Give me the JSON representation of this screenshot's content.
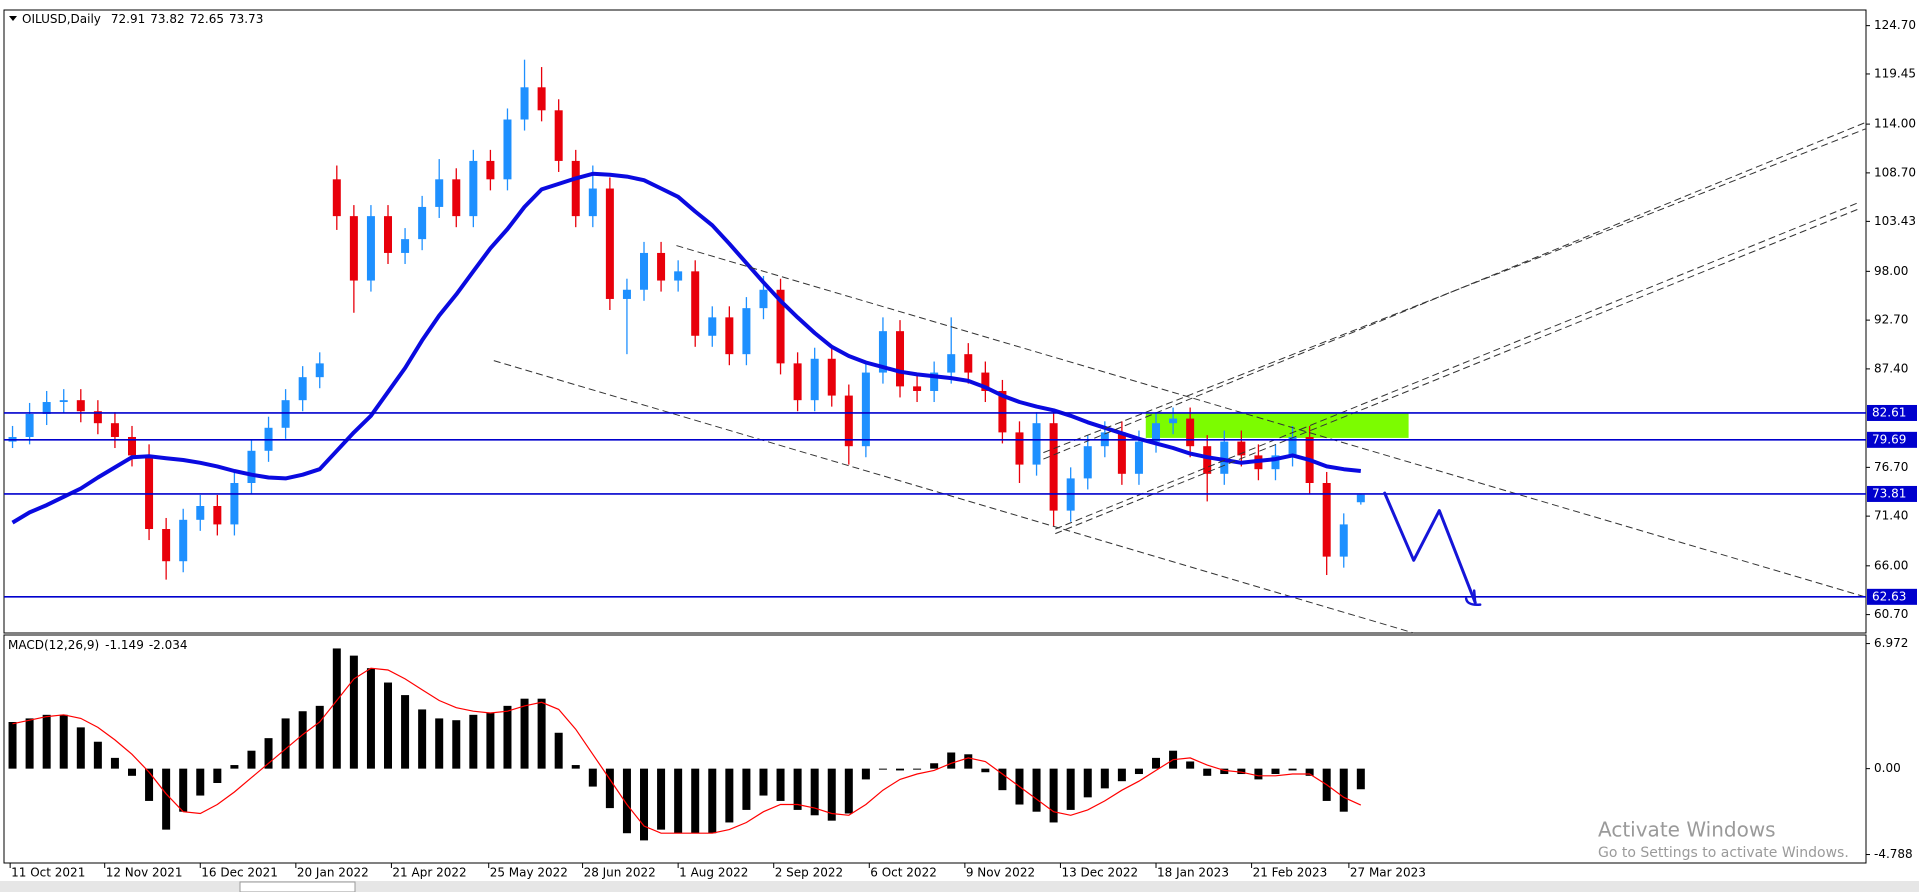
{
  "chart_data": [
    {
      "type": "candlestick",
      "title": "OILUSD,Daily",
      "xlim": [
        -0.5,
        108.6
      ],
      "xticks": [
        {
          "value": -0.14,
          "label": "11 Oct 2021"
        },
        {
          "value": 5.4,
          "label": "12 Nov 2021"
        },
        {
          "value": 11.0,
          "label": "16 Dec 2021"
        },
        {
          "value": 16.6,
          "label": "20 Jan 2022"
        },
        {
          "value": 22.2,
          "label": "21 Apr 2022"
        },
        {
          "value": 27.9,
          "label": "25 May 2022"
        },
        {
          "value": 33.4,
          "label": "28 Jun 2022"
        },
        {
          "value": 39.0,
          "label": "1 Aug 2022"
        },
        {
          "value": 44.6,
          "label": "2 Sep 2022"
        },
        {
          "value": 50.2,
          "label": "6 Oct 2022"
        },
        {
          "value": 55.8,
          "label": "9 Nov 2022"
        },
        {
          "value": 61.4,
          "label": "13 Dec 2022"
        },
        {
          "value": 67.0,
          "label": "18 Jan 2023"
        },
        {
          "value": 72.6,
          "label": "21 Feb 2023"
        },
        {
          "value": 78.3,
          "label": "27 Mar 2023"
        }
      ],
      "ylim": [
        58.7,
        126.4
      ],
      "yticks": [
        {
          "value": 124.7,
          "label": "124.70"
        },
        119.45,
        {
          "value": 114,
          "label": "114.00"
        },
        {
          "value": 108.7,
          "label": "108.70"
        },
        103.43,
        {
          "value": 98,
          "label": "98.00"
        },
        {
          "value": 92.7,
          "label": "92.70"
        },
        {
          "value": 87.4,
          "label": "87.40"
        },
        {
          "value": 76.7,
          "label": "76.70"
        },
        {
          "value": 71.4,
          "label": "71.40"
        },
        {
          "value": 66,
          "label": "66.00"
        },
        {
          "value": 60.7,
          "label": "60.70"
        }
      ],
      "up_color": "#1e90ff",
      "down_color": "#e8000b",
      "candles": [
        [
          79.5,
          81.2,
          78.8,
          80.0
        ],
        [
          80.0,
          83.7,
          79.2,
          82.5
        ],
        [
          82.5,
          85.0,
          81.3,
          83.8
        ],
        [
          83.8,
          85.2,
          82.6,
          84.0
        ],
        [
          84.0,
          85.2,
          81.6,
          82.8
        ],
        [
          82.8,
          84.0,
          80.3,
          81.5
        ],
        [
          81.5,
          82.7,
          78.8,
          80.0
        ],
        [
          80.0,
          81.2,
          76.8,
          78.0
        ],
        [
          78.0,
          79.2,
          68.8,
          70.0
        ],
        [
          70.0,
          71.2,
          64.5,
          66.5
        ],
        [
          66.5,
          72.2,
          65.3,
          71.0
        ],
        [
          71.0,
          73.7,
          69.8,
          72.5
        ],
        [
          72.5,
          73.7,
          69.3,
          70.5
        ],
        [
          70.5,
          76.2,
          69.3,
          75.0
        ],
        [
          75.0,
          79.7,
          73.8,
          78.5
        ],
        [
          78.5,
          82.2,
          77.3,
          81.0
        ],
        [
          81.0,
          85.2,
          79.8,
          84.0
        ],
        [
          84.0,
          87.7,
          82.8,
          86.5
        ],
        [
          86.5,
          89.2,
          85.3,
          88.0
        ],
        [
          108.0,
          109.5,
          102.5,
          104.0
        ],
        [
          104.0,
          105.2,
          93.5,
          97.0
        ],
        [
          97.0,
          105.2,
          95.8,
          104.0
        ],
        [
          104.0,
          105.2,
          98.8,
          100.0
        ],
        [
          100.0,
          102.7,
          98.8,
          101.5
        ],
        [
          101.5,
          106.2,
          100.3,
          105.0
        ],
        [
          105.0,
          110.2,
          103.8,
          108.0
        ],
        [
          108.0,
          109.2,
          102.8,
          104.0
        ],
        [
          104.0,
          111.2,
          102.8,
          110.0
        ],
        [
          110.0,
          111.2,
          106.8,
          108.0
        ],
        [
          108.0,
          115.7,
          106.8,
          114.5
        ],
        [
          114.5,
          121.0,
          113.3,
          118.0
        ],
        [
          118.0,
          120.2,
          114.3,
          115.5
        ],
        [
          115.5,
          116.7,
          108.8,
          110.0
        ],
        [
          110.0,
          111.2,
          102.8,
          104.0
        ],
        [
          104.0,
          109.5,
          102.8,
          107.0
        ],
        [
          107.0,
          108.2,
          93.8,
          95.0
        ],
        [
          95.0,
          97.2,
          89.0,
          96.0
        ],
        [
          96.0,
          101.2,
          94.8,
          100.0
        ],
        [
          100.0,
          101.2,
          95.8,
          97.0
        ],
        [
          97.0,
          99.2,
          95.8,
          98.0
        ],
        [
          98.0,
          99.2,
          89.8,
          91.0
        ],
        [
          91.0,
          94.2,
          89.8,
          93.0
        ],
        [
          93.0,
          94.2,
          87.8,
          89.0
        ],
        [
          89.0,
          95.2,
          87.8,
          94.0
        ],
        [
          94.0,
          97.5,
          92.8,
          96.0
        ],
        [
          96.0,
          97.2,
          86.8,
          88.0
        ],
        [
          88.0,
          89.2,
          82.8,
          84.0
        ],
        [
          84.0,
          89.7,
          82.8,
          88.5
        ],
        [
          88.5,
          89.7,
          83.3,
          84.5
        ],
        [
          84.5,
          85.7,
          77.0,
          79.0
        ],
        [
          79.0,
          88.2,
          77.8,
          87.0
        ],
        [
          87.0,
          93.0,
          85.8,
          91.5
        ],
        [
          91.5,
          92.7,
          84.3,
          85.5
        ],
        [
          85.5,
          86.7,
          83.8,
          85.0
        ],
        [
          85.0,
          88.2,
          83.8,
          87.0
        ],
        [
          87.0,
          93.0,
          85.8,
          89.0
        ],
        [
          89.0,
          90.2,
          85.8,
          87.0
        ],
        [
          87.0,
          88.2,
          83.8,
          85.0
        ],
        [
          85.0,
          86.2,
          79.3,
          80.5
        ],
        [
          80.5,
          81.7,
          75.0,
          77.0
        ],
        [
          77.0,
          82.7,
          75.8,
          81.5
        ],
        [
          81.5,
          82.7,
          70.3,
          72.0
        ],
        [
          72.0,
          76.7,
          70.8,
          75.5
        ],
        [
          75.5,
          80.2,
          74.3,
          79.0
        ],
        [
          79.0,
          81.7,
          77.8,
          80.5
        ],
        [
          80.5,
          81.7,
          74.8,
          76.0
        ],
        [
          76.0,
          80.7,
          74.8,
          79.5
        ],
        [
          79.5,
          82.7,
          78.3,
          81.5
        ],
        [
          81.5,
          83.2,
          80.3,
          82.0
        ],
        [
          82.0,
          83.2,
          77.8,
          79.0
        ],
        [
          79.0,
          80.2,
          73.0,
          76.0
        ],
        [
          76.0,
          80.7,
          74.8,
          79.5
        ],
        [
          79.5,
          80.7,
          76.8,
          78.0
        ],
        [
          78.0,
          79.2,
          75.3,
          76.5
        ],
        [
          76.5,
          79.2,
          75.3,
          78.0
        ],
        [
          78.0,
          81.2,
          76.8,
          80.0
        ],
        [
          80.0,
          81.2,
          73.8,
          75.0
        ],
        [
          75.0,
          76.2,
          65.0,
          67.0
        ],
        [
          67.0,
          71.7,
          65.8,
          70.5
        ],
        [
          72.91,
          73.82,
          72.65,
          73.73
        ]
      ],
      "ma": {
        "color": "#0a0ae0",
        "values": [
          70.7,
          71.8,
          72.6,
          73.5,
          74.4,
          75.6,
          76.7,
          77.8,
          77.9,
          77.7,
          77.5,
          77.2,
          76.8,
          76.3,
          75.9,
          75.6,
          75.5,
          75.9,
          76.5,
          78.5,
          80.5,
          82.3,
          84.9,
          87.5,
          90.5,
          93.2,
          95.5,
          98.0,
          100.5,
          102.6,
          105.0,
          106.9,
          107.5,
          108.1,
          108.6,
          108.5,
          108.3,
          107.9,
          107.0,
          106.1,
          104.5,
          103.0,
          101.0,
          98.9,
          96.8,
          94.8,
          93.0,
          91.3,
          89.8,
          88.8,
          88.1,
          87.6,
          87.1,
          86.8,
          86.6,
          86.4,
          86.1,
          85.4,
          84.5,
          83.8,
          83.3,
          82.9,
          82.3,
          81.6,
          81.0,
          80.4,
          79.8,
          79.3,
          78.8,
          78.2,
          77.8,
          77.5,
          77.2,
          77.4,
          77.6,
          78.0,
          77.5,
          76.8,
          76.5,
          76.3
        ]
      },
      "levels": {
        "color": "#0000cd",
        "values": [
          82.61,
          79.69,
          73.81,
          62.63
        ]
      },
      "zone": {
        "color": "#7cfc00",
        "x": [
          66.4,
          81.8
        ],
        "y": [
          79.9,
          82.6
        ]
      },
      "trendlines": [
        {
          "x": [
            38.9,
            108.6
          ],
          "y": [
            100.8,
            62.6
          ]
        },
        {
          "x": [
            28.2,
            82.1
          ],
          "y": [
            88.3,
            58.7
          ]
        },
        {
          "x": [
            60.4,
            108.6
          ],
          "y": [
            77.6,
            114.2
          ]
        },
        {
          "x": [
            60.4,
            108.6
          ],
          "y": [
            78.3,
            113.5
          ]
        },
        {
          "x": [
            61.1,
            108.2
          ],
          "y": [
            70.0,
            105.5
          ]
        },
        {
          "x": [
            61.1,
            108.2
          ],
          "y": [
            69.5,
            104.8
          ]
        }
      ],
      "projection": {
        "color": "#1515d8",
        "x": [
          80.4,
          82.1,
          83.6,
          85.7
        ],
        "y": [
          73.9,
          66.6,
          72.0,
          62.0
        ]
      }
    },
    {
      "type": "macd",
      "title": "MACD(12,26,9)",
      "color": "#000000",
      "ylim": [
        -5.26,
        7.45
      ],
      "yticks": [
        6.972,
        {
          "value": 0,
          "label": "0.00"
        },
        -4.788
      ],
      "values": [
        2.6,
        2.8,
        3.0,
        3.0,
        2.3,
        1.5,
        0.6,
        -0.4,
        -1.8,
        -3.4,
        -2.4,
        -1.5,
        -0.8,
        0.2,
        1.0,
        1.7,
        2.8,
        3.2,
        3.5,
        6.7,
        6.3,
        5.6,
        4.8,
        4.1,
        3.3,
        2.8,
        2.7,
        3.0,
        3.1,
        3.5,
        3.9,
        3.9,
        2.0,
        0.2,
        -1.0,
        -2.2,
        -3.6,
        -4.0,
        -3.4,
        -3.6,
        -3.6,
        -3.6,
        -3.0,
        -2.3,
        -1.5,
        -1.8,
        -2.3,
        -2.6,
        -2.9,
        -2.5,
        -0.6,
        0.0,
        -0.1,
        0.0,
        0.3,
        0.9,
        0.8,
        -0.2,
        -1.2,
        -2.0,
        -2.4,
        -3.0,
        -2.3,
        -1.6,
        -1.1,
        -0.7,
        -0.3,
        0.6,
        1.0,
        0.4,
        -0.4,
        -0.3,
        -0.3,
        -0.6,
        -0.3,
        -0.1,
        -0.4,
        -1.8,
        -2.4,
        -1.149
      ],
      "signal": {
        "color": "#ff0000",
        "values": [
          2.5,
          2.7,
          2.9,
          3.0,
          2.8,
          2.3,
          1.6,
          0.8,
          -0.2,
          -1.4,
          -2.4,
          -2.5,
          -2.0,
          -1.3,
          -0.5,
          0.3,
          1.1,
          1.9,
          2.6,
          3.8,
          5.0,
          5.6,
          5.5,
          5.0,
          4.4,
          3.8,
          3.4,
          3.2,
          3.1,
          3.2,
          3.5,
          3.7,
          3.3,
          2.2,
          0.8,
          -0.6,
          -2.0,
          -3.2,
          -3.6,
          -3.6,
          -3.6,
          -3.6,
          -3.4,
          -3.0,
          -2.4,
          -2.0,
          -2.0,
          -2.2,
          -2.5,
          -2.6,
          -2.0,
          -1.2,
          -0.6,
          -0.3,
          -0.1,
          0.3,
          0.6,
          0.4,
          -0.3,
          -1.0,
          -1.7,
          -2.4,
          -2.6,
          -2.3,
          -1.8,
          -1.2,
          -0.7,
          -0.1,
          0.5,
          0.6,
          0.2,
          -0.1,
          -0.2,
          -0.4,
          -0.4,
          -0.3,
          -0.3,
          -0.9,
          -1.6,
          -2.034
        ]
      }
    }
  ],
  "watermark": {
    "title": "Activate Windows",
    "subtitle": "Go to Settings to activate Windows."
  }
}
